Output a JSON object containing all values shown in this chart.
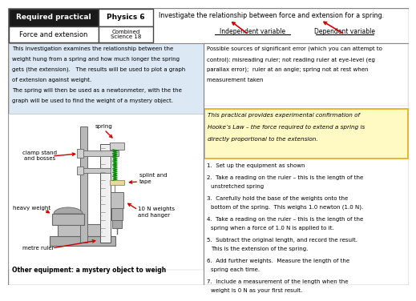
{
  "header_black_bg": "#1a1a1a",
  "light_blue_bg": "#dce9f5",
  "hooke_bg": "#fff9c4",
  "hooke_border": "#e6a817",
  "arrow_color": "#cc0000",
  "title_row1_left": "Required practical",
  "title_row1_right": "Physics 6",
  "title_row2_left": "Force and extension",
  "title_row2_right": "Combined\nScience 18",
  "header_description": "Investigate the relationship between force and extension for a spring.",
  "independent_label": "Independent variable",
  "dependent_label": "Dependent variable",
  "left_text_lines": [
    "This investigation examines the relationship between the",
    "weight hung from a spring and how much longer the spring",
    "gets (the extension).   The results will be used to plot a graph",
    "of extension against weight.",
    "The spring will then be used as a newtonmeter, with the the",
    "graph will be used to find the weight of a mystery object."
  ],
  "right_text_top_lines": [
    "Possible sources of significant error (which you can attempt to",
    "control): misreading ruler; not reading ruler at eye-level (eg",
    "parallax error);  ruler at an angle; spring not at rest when",
    "measurement taken"
  ],
  "hooke_lines": [
    "This practical provides experimental confirmation of",
    "Hooke’s Law – the force required to extend a spring is",
    "directly proportional to the extension."
  ],
  "steps": [
    "1.  Set up the equipment as shown",
    "2.  Take a reading on the ruler – this is the length of the\n    unstretched spring",
    "3.  Carefully hold the base of the weights onto the\n    bottom of the spring.  This weighs 1.0 newton (1.0 N).",
    "4.  Take a reading on the ruler – this is the length of the\n    spring when a force of 1.0 N is applied to it.",
    "5.  Subtract the original length, and record the result.\n    This is the extension of the spring.",
    "6.  Add further weights.  Measure the length of the\n    spring each time.",
    "7.  Include a measurement of the length when the\n    weight is 0 N as your first result."
  ],
  "other_equipment": "Other equipment: a mystery object to weigh"
}
